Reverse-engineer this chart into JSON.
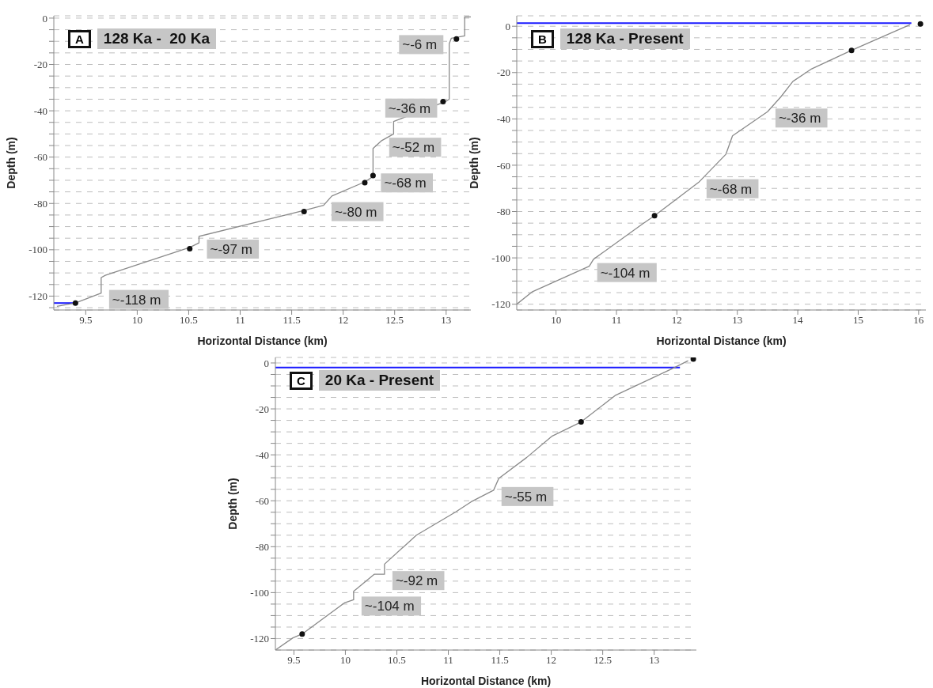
{
  "chart_data": [
    {
      "type": "line",
      "title": "128 Ka -  20 Ka",
      "xlabel": "Horizontal Distance (km)",
      "ylabel": "Depth (m)",
      "xlim": [
        9.19,
        13.24
      ],
      "xticks": [
        9.5,
        10,
        10.5,
        11,
        11.5,
        12,
        12.5,
        13
      ],
      "ylim": [
        -126,
        1
      ],
      "yticks": [
        -120,
        {
          "value": -125,
          "label": null
        },
        {
          "value": -115,
          "label": null
        },
        {
          "value": -110,
          "label": null
        },
        {
          "value": -105,
          "label": null
        },
        -100,
        {
          "value": -95,
          "label": null
        },
        {
          "value": -90,
          "label": null
        },
        {
          "value": -85,
          "label": null
        },
        -80,
        {
          "value": -75,
          "label": null
        },
        {
          "value": -70,
          "label": null
        },
        {
          "value": -65,
          "label": null
        },
        -60,
        {
          "value": -55,
          "label": null
        },
        {
          "value": -50,
          "label": null
        },
        {
          "value": -45,
          "label": null
        },
        -40,
        {
          "value": -35,
          "label": null
        },
        {
          "value": -30,
          "label": null
        },
        {
          "value": -25,
          "label": null
        },
        -20,
        {
          "value": -15,
          "label": null
        },
        {
          "value": -10,
          "label": null
        },
        {
          "value": -5,
          "label": null
        },
        0
      ],
      "grid": "y",
      "series": [
        {
          "color": "#1a1aff",
          "x": [
            9.19,
            9.4
          ],
          "values": [
            -123,
            -123
          ]
        },
        {
          "color": "#8a8a8a",
          "x": [
            9.22,
            9.4,
            9.65,
            9.65,
            9.69,
            10.51,
            10.6,
            10.6,
            11.62,
            11.81,
            11.89,
            12.21,
            12.29,
            12.29,
            12.37,
            12.49,
            12.49,
            12.99,
            13.03,
            13.03,
            13.05,
            13.18,
            13.18,
            13.24
          ],
          "values": [
            -124.4,
            -123,
            -118.7,
            -112,
            -111,
            -99,
            -97,
            -94.2,
            -83,
            -80.8,
            -76.8,
            -70.7,
            -68.4,
            -56.3,
            -53,
            -50,
            -44.6,
            -36.1,
            -35,
            -11,
            -8.7,
            -7.7,
            0.5,
            0.5
          ]
        },
        {
          "type": "scatter",
          "color": "#111111",
          "marker": "circle",
          "x": [
            9.4,
            10.51,
            11.62,
            12.21,
            12.29,
            12.97,
            13.1
          ],
          "values": [
            -123,
            -99.5,
            -83.5,
            -71,
            -68,
            -36,
            -9
          ]
        }
      ],
      "annotations": [
        "A",
        {
          "text": "~-6 m",
          "x": 13.05,
          "y": -8.7
        },
        {
          "text": "~-36 m",
          "x": 12.99,
          "y": -36.1
        },
        {
          "text": "~-52 m",
          "x": 12.37,
          "y": -53
        },
        {
          "text": "~-68 m",
          "x": 12.29,
          "y": -68.4
        },
        {
          "text": "~-80 m",
          "x": 11.81,
          "y": -80.8
        },
        {
          "text": "~-97 m",
          "x": 10.6,
          "y": -97
        },
        {
          "text": "~-118 m",
          "x": 9.65,
          "y": -118.7
        }
      ]
    },
    {
      "type": "line",
      "title": "128 Ka - Present",
      "xlabel": "Horizontal Distance (km)",
      "ylabel": "Depth (m)",
      "xlim": [
        9.35,
        16.12
      ],
      "xticks": [
        10,
        11,
        12,
        13,
        14,
        15,
        16
      ],
      "ylim": [
        -122.5,
        4.5
      ],
      "yticks": [
        -120,
        {
          "value": -115,
          "label": null
        },
        {
          "value": -110,
          "label": null
        },
        {
          "value": -105,
          "label": null
        },
        -100,
        {
          "value": -95,
          "label": null
        },
        {
          "value": -90,
          "label": null
        },
        {
          "value": -85,
          "label": null
        },
        -80,
        {
          "value": -75,
          "label": null
        },
        {
          "value": -70,
          "label": null
        },
        {
          "value": -65,
          "label": null
        },
        -60,
        {
          "value": -55,
          "label": null
        },
        {
          "value": -50,
          "label": null
        },
        {
          "value": -45,
          "label": null
        },
        -40,
        {
          "value": -35,
          "label": null
        },
        {
          "value": -30,
          "label": null
        },
        {
          "value": -25,
          "label": null
        },
        -20,
        {
          "value": -15,
          "label": null
        },
        {
          "value": -10,
          "label": null
        },
        {
          "value": -5,
          "label": null
        },
        0
      ],
      "grid": "y",
      "series": [
        {
          "color": "#1a1aff",
          "x": [
            9.35,
            15.88
          ],
          "values": [
            1.3,
            1.3
          ]
        },
        {
          "color": "#8a8a8a",
          "x": [
            9.35,
            9.61,
            10.55,
            10.62,
            11.43,
            11.63,
            12.36,
            12.81,
            12.92,
            13.5,
            13.72,
            13.92,
            14.23,
            14.89,
            15.86
          ],
          "values": [
            -120,
            -114.6,
            -103.6,
            -100.6,
            -85.4,
            -81.8,
            -67.4,
            -55.3,
            -47.3,
            -36.9,
            -30.5,
            -23.8,
            -18.4,
            -10.4,
            0.7
          ]
        },
        {
          "type": "scatter",
          "color": "#111111",
          "marker": "circle",
          "x": [
            11.63,
            14.89,
            16.03
          ],
          "values": [
            -81.8,
            -10.4,
            1
          ]
        }
      ],
      "annotations": [
        "B",
        {
          "text": "~-36 m",
          "x": 13.5,
          "y": -36.9
        },
        {
          "text": "~-68 m",
          "x": 12.36,
          "y": -67.4
        },
        {
          "text": "~-104 m",
          "x": 10.55,
          "y": -103.6
        }
      ]
    },
    {
      "type": "line",
      "title": "20 Ka - Present",
      "xlabel": "Horizontal Distance (km)",
      "ylabel": "Depth (m)",
      "xlim": [
        9.32,
        13.41
      ],
      "xticks": [
        9.5,
        10,
        10.5,
        11,
        11.5,
        12,
        12.5,
        13
      ],
      "ylim": [
        -125,
        2.4
      ],
      "yticks": [
        -120,
        {
          "value": -115,
          "label": null
        },
        {
          "value": -110,
          "label": null
        },
        {
          "value": -105,
          "label": null
        },
        -100,
        {
          "value": -95,
          "label": null
        },
        {
          "value": -90,
          "label": null
        },
        {
          "value": -85,
          "label": null
        },
        -80,
        {
          "value": -75,
          "label": null
        },
        {
          "value": -70,
          "label": null
        },
        {
          "value": -65,
          "label": null
        },
        -60,
        {
          "value": -55,
          "label": null
        },
        {
          "value": -50,
          "label": null
        },
        {
          "value": -45,
          "label": null
        },
        -40,
        {
          "value": -35,
          "label": null
        },
        {
          "value": -30,
          "label": null
        },
        {
          "value": -25,
          "label": null
        },
        -20,
        {
          "value": -15,
          "label": null
        },
        {
          "value": -10,
          "label": null
        },
        {
          "value": -5,
          "label": null
        },
        0
      ],
      "grid": "y",
      "series": [
        {
          "color": "#1a1aff",
          "x": [
            9.32,
            13.25
          ],
          "values": [
            -2,
            -2
          ]
        },
        {
          "color": "#8a8a8a",
          "x": [
            9.32,
            9.49,
            9.58,
            9.99,
            10.08,
            10.08,
            10.28,
            10.38,
            10.38,
            10.69,
            11.07,
            11.22,
            11.44,
            11.49,
            11.76,
            12.01,
            12.29,
            12.62,
            13.18,
            13.33
          ],
          "values": [
            -125,
            -119.7,
            -118,
            -104.5,
            -103.1,
            -99.4,
            -92,
            -92,
            -87.6,
            -75,
            -64.9,
            -60.5,
            -55.4,
            -50.3,
            -41.2,
            -31.8,
            -25.7,
            -14.2,
            -2.4,
            1
          ]
        },
        {
          "type": "scatter",
          "color": "#111111",
          "marker": "circle",
          "x": [
            9.58,
            12.29,
            13.38
          ],
          "values": [
            -118,
            -25.7,
            1.7
          ]
        }
      ],
      "annotations": [
        "C",
        {
          "text": "~-55 m",
          "x": 11.44,
          "y": -55.4
        },
        {
          "text": "~-92 m",
          "x": 10.38,
          "y": -92
        },
        {
          "text": "~-104 m",
          "x": 10.08,
          "y": -103.1
        }
      ]
    }
  ]
}
